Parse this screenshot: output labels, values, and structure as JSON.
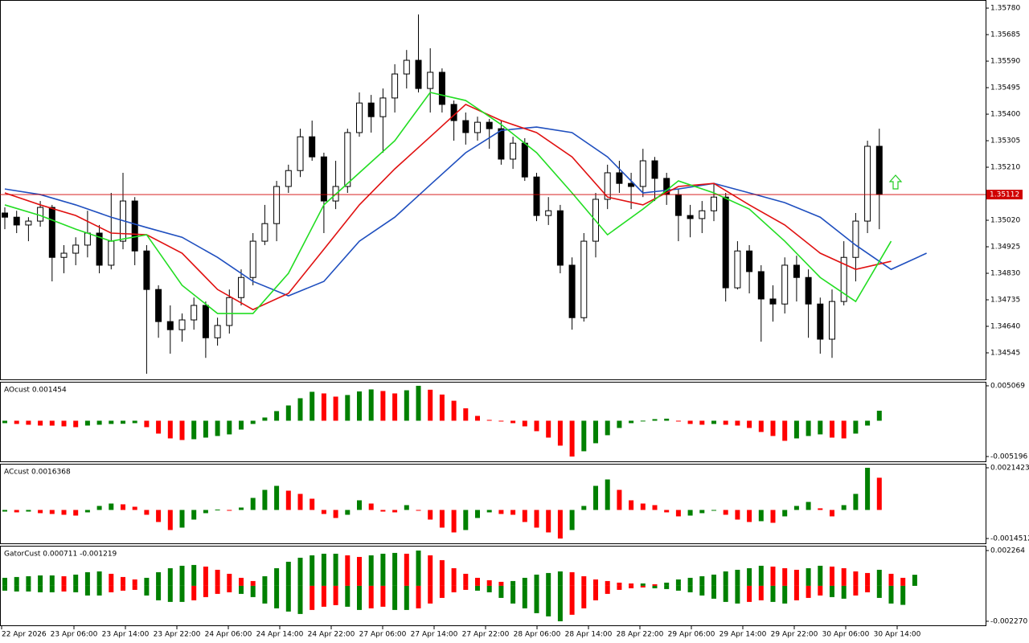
{
  "chart_data": [
    {
      "type": "candlestick",
      "open": [
        1.35046,
        1.35031,
        1.35003,
        1.35017,
        1.35066,
        1.34887,
        1.34902,
        1.34931,
        1.34974,
        1.34859,
        1.34945,
        1.35089,
        1.3491,
        1.34772,
        1.34657,
        1.34628,
        1.34663,
        1.34715,
        1.34599,
        1.34643,
        1.34743,
        1.34815,
        1.34945,
        1.35008,
        1.35141,
        1.35198,
        1.35319,
        1.35247,
        1.35089,
        1.35141,
        1.35334,
        1.3544,
        1.35391,
        1.35458,
        1.35544,
        1.35593,
        1.35492,
        1.3555,
        1.35435,
        1.35377,
        1.35334,
        1.35371,
        1.35348,
        1.35239,
        1.35296,
        1.35175,
        1.35037,
        1.35054,
        1.34859,
        1.34671,
        1.34945,
        1.35095,
        1.3519,
        1.35152,
        1.35141,
        1.35233,
        1.3517,
        1.35112,
        1.35037,
        1.35026,
        1.35054,
        1.35103,
        1.34778,
        1.3491,
        1.34836,
        1.34738,
        1.3472,
        1.34859,
        1.34815,
        1.3472,
        1.34594,
        1.34729,
        1.34887,
        1.35017,
        1.35285
      ],
      "high": [
        1.35066,
        1.35054,
        1.35031,
        1.35089,
        1.35075,
        1.34931,
        1.34959,
        1.35054,
        1.35003,
        1.35118,
        1.3519,
        1.35103,
        1.34931,
        1.34787,
        1.34715,
        1.34686,
        1.34743,
        1.34729,
        1.34671,
        1.34772,
        1.34844,
        1.34974,
        1.35075,
        1.35161,
        1.35219,
        1.35348,
        1.35377,
        1.35262,
        1.35233,
        1.35348,
        1.35478,
        1.35469,
        1.35492,
        1.35579,
        1.3563,
        1.35757,
        1.35636,
        1.35564,
        1.35449,
        1.35406,
        1.35391,
        1.35383,
        1.35377,
        1.35319,
        1.35314,
        1.3519,
        1.35103,
        1.35075,
        1.34887,
        1.34974,
        1.35118,
        1.35219,
        1.35233,
        1.3519,
        1.35276,
        1.35247,
        1.3519,
        1.35132,
        1.35075,
        1.35089,
        1.35152,
        1.35118,
        1.34945,
        1.34931,
        1.34859,
        1.34787,
        1.34887,
        1.34893,
        1.34844,
        1.34743,
        1.34772,
        1.34945,
        1.35046,
        1.35305,
        1.35348
      ],
      "low": [
        1.34988,
        1.34974,
        1.34945,
        1.34997,
        1.34801,
        1.3483,
        1.34859,
        1.34887,
        1.3483,
        1.34844,
        1.34916,
        1.34859,
        1.3447,
        1.34599,
        1.34542,
        1.34585,
        1.34628,
        1.34527,
        1.34571,
        1.34614,
        1.34715,
        1.34787,
        1.34931,
        1.34945,
        1.35118,
        1.35175,
        1.35233,
        1.34974,
        1.3506,
        1.35118,
        1.35319,
        1.35334,
        1.35262,
        1.35406,
        1.35492,
        1.35478,
        1.35406,
        1.35406,
        1.35305,
        1.35291,
        1.35305,
        1.35276,
        1.35219,
        1.35204,
        1.35161,
        1.35017,
        1.35003,
        1.3483,
        1.34628,
        1.34657,
        1.34887,
        1.3506,
        1.35118,
        1.3506,
        1.35103,
        1.35089,
        1.35075,
        1.34945,
        1.34959,
        1.34974,
        1.35017,
        1.34729,
        1.34772,
        1.34758,
        1.34585,
        1.34657,
        1.34686,
        1.34729,
        1.34599,
        1.34542,
        1.34527,
        1.34715,
        1.34801,
        1.34974,
        1.34988
      ],
      "close": [
        1.35031,
        1.35003,
        1.35017,
        1.35066,
        1.34887,
        1.34902,
        1.34931,
        1.34974,
        1.34859,
        1.34945,
        1.35089,
        1.3491,
        1.34772,
        1.34657,
        1.34628,
        1.34663,
        1.34715,
        1.34599,
        1.34643,
        1.34743,
        1.34815,
        1.34945,
        1.35008,
        1.35141,
        1.35198,
        1.35319,
        1.35247,
        1.35089,
        1.35141,
        1.35334,
        1.3544,
        1.35391,
        1.35458,
        1.35544,
        1.35593,
        1.35492,
        1.3555,
        1.35435,
        1.35377,
        1.35334,
        1.35371,
        1.35348,
        1.35239,
        1.35296,
        1.35175,
        1.35037,
        1.35054,
        1.34859,
        1.34671,
        1.34945,
        1.35095,
        1.3519,
        1.35152,
        1.35141,
        1.35233,
        1.3517,
        1.35112,
        1.35037,
        1.35026,
        1.35054,
        1.35103,
        1.34778,
        1.3491,
        1.34836,
        1.34738,
        1.3472,
        1.34859,
        1.34815,
        1.3472,
        1.34594,
        1.34729,
        1.34887,
        1.35017,
        1.35285,
        1.35112
      ],
      "up_color": "#ffffff",
      "down_color": "#000000",
      "lines": [
        {
          "color": "#1f4fbf",
          "values": [
            1.35132,
            1.35112,
            1.35075,
            1.35031,
            1.34994,
            1.34959,
            1.34887,
            1.34801,
            1.34749,
            1.34801,
            1.34945,
            1.35031,
            1.35147,
            1.35262,
            1.35342,
            1.35354,
            1.35334,
            1.35247,
            1.35118,
            1.35132,
            1.35152,
            1.35118,
            1.35083,
            1.35031,
            1.34931,
            1.34844,
            1.34902
          ]
        },
        {
          "color": "#e01010",
          "values": [
            1.35118,
            1.35075,
            1.35037,
            1.34974,
            1.34968,
            1.34902,
            1.34772,
            1.347,
            1.34758,
            1.34916,
            1.35075,
            1.35204,
            1.35319,
            1.35435,
            1.35377,
            1.35334,
            1.35247,
            1.35103,
            1.35075,
            1.35141,
            1.35152,
            1.35075,
            1.35003,
            1.34902,
            1.34844,
            1.34873,
            null
          ]
        },
        {
          "color": "#22dd22",
          "values": [
            1.35075,
            1.35037,
            1.34988,
            1.34945,
            1.34968,
            1.34787,
            1.34686,
            1.34686,
            1.3483,
            1.35075,
            1.3519,
            1.35305,
            1.35478,
            1.35449,
            1.35363,
            1.35262,
            1.35118,
            1.34968,
            1.3506,
            1.35161,
            1.35118,
            1.3506,
            1.34945,
            1.34815,
            1.34729,
            1.34945,
            null
          ]
        }
      ],
      "current_price": 1.35112,
      "current_price_color": "#d00000",
      "ylim": [
        1.3445,
        1.35809
      ],
      "yticks": [
        {
          "value": 1.3578,
          "label": "1.35780"
        },
        1.35685,
        {
          "value": 1.3559,
          "label": "1.35590"
        },
        1.35495,
        {
          "value": 1.354,
          "label": "1.35400"
        },
        1.35305,
        {
          "value": 1.3521,
          "label": "1.35210"
        },
        {
          "value": 1.3502,
          "label": "1.35020"
        },
        1.34925,
        {
          "value": 1.3483,
          "label": "1.34830"
        },
        1.34735,
        {
          "value": 1.3464,
          "label": "1.34640"
        },
        1.34545
      ]
    },
    {
      "type": "bar",
      "title": "AOcust 0.001454",
      "values": [
        -0.00035,
        -0.000466,
        -0.000583,
        -0.0007,
        -0.00071,
        -0.000816,
        -0.000933,
        -0.0007,
        -0.000583,
        -0.000466,
        -0.00044,
        -0.00035,
        -0.000933,
        -0.001866,
        -0.002565,
        -0.002798,
        -0.002682,
        -0.002449,
        -0.002215,
        -0.001982,
        -0.001283,
        -0.000466,
        0.000466,
        0.001399,
        0.002215,
        0.003265,
        0.004198,
        0.003964,
        0.003498,
        0.003731,
        0.00425,
        0.004547,
        0.004314,
        0.003964,
        0.00442,
        0.005069,
        0.0045,
        0.0038,
        0.0029,
        0.0018,
        0.0007,
        0.00012,
        -5e-05,
        -0.00035,
        -0.000816,
        -0.001516,
        -0.002449,
        -0.003614,
        -0.005196,
        -0.00443,
        -0.003265,
        -0.002099,
        -0.001049,
        -0.00035,
        1e-05,
        0.000233,
        0.0003,
        -5e-05,
        -0.000466,
        -0.000583,
        -0.000466,
        -0.000583,
        -0.0007,
        -0.001049,
        -0.001632,
        -0.002215,
        -0.002915,
        -0.002565,
        -0.002215,
        -0.001982,
        -0.002449,
        -0.002565,
        -0.001866,
        -0.0007,
        0.001454
      ],
      "up_color": "#008000",
      "down_color": "#ff0000",
      "ylim": [
        -0.006012,
        0.005536
      ],
      "yticks": [
        0.005069,
        -0.005196
      ]
    },
    {
      "type": "bar",
      "title": "ACcust 0.0016368",
      "values": [
        -8.2e-05,
        -0.000122,
        -8.2e-05,
        -0.000163,
        -0.000204,
        -0.000245,
        -0.000286,
        -0.000122,
        0.000204,
        0.000326,
        0.000286,
        0.000163,
        -0.000245,
        -0.000612,
        -0.00102,
        -0.000898,
        -0.00049,
        -0.000163,
        2e-05,
        -4.1e-05,
        0.000122,
        0.000612,
        0.00102,
        0.001224,
        0.000979,
        0.000816,
        0.000571,
        -0.000204,
        -0.000408,
        -0.000245,
        0.00049,
        0.000326,
        -8.2e-05,
        -0.000122,
        0.000245,
        -4.1e-05,
        -0.00049,
        -0.000898,
        -0.001142,
        -0.00102,
        -0.000408,
        -0.000122,
        -0.000204,
        -0.000245,
        -0.000612,
        -0.000898,
        -0.001142,
        -0.0014512,
        -0.00102,
        0.000204,
        0.001224,
        0.00155,
        0.00102,
        0.00049,
        0.000326,
        0.000245,
        -0.000122,
        -0.000326,
        -0.000286,
        -0.000163,
        -1e-05,
        -0.000245,
        -0.00049,
        -0.000612,
        -0.000571,
        -0.000653,
        -0.000326,
        0.000204,
        0.000408,
        8.2e-05,
        -0.000326,
        0.000245,
        0.000816,
        0.0021423,
        0.0016368
      ],
      "up_color": "#008000",
      "down_color": "#ff0000",
      "ylim": [
        -0.001737,
        0.002306
      ],
      "yticks": [
        0.0021423,
        -0.0014512
      ]
    },
    {
      "type": "gator",
      "title": "GatorCust 0.000711 -0.001219",
      "upper": [
        0.000515,
        0.000567,
        0.000618,
        0.00067,
        0.00067,
        0.000618,
        0.000721,
        0.000876,
        0.000927,
        0.000773,
        0.000567,
        0.000412,
        0.000515,
        0.000876,
        0.001133,
        0.001288,
        0.001339,
        0.001236,
        0.00103,
        0.000773,
        0.000515,
        0.000309,
        0.000618,
        0.001133,
        0.001545,
        0.001803,
        0.001957,
        0.00206,
        0.00206,
        0.001957,
        0.001854,
        0.001957,
        0.00206,
        0.002112,
        0.00206,
        0.002264,
        0.001957,
        0.001648,
        0.001133,
        0.000773,
        0.000515,
        0.000361,
        0.000258,
        0.000309,
        0.000515,
        0.000721,
        0.000824,
        0.000927,
        0.000876,
        0.000618,
        0.000412,
        0.000309,
        0.000206,
        0.000155,
        0.000155,
        0.000103,
        0.000206,
        0.000412,
        0.000515,
        0.000618,
        0.000721,
        0.000927,
        0.00103,
        0.001133,
        0.001288,
        0.001236,
        0.001133,
        0.00103,
        0.001133,
        0.001288,
        0.001236,
        0.001133,
        0.000927,
        0.000824,
        0.00103,
        0.000773,
        0.000515,
        0.000711
      ],
      "lower": [
        -0.000309,
        -0.000361,
        -0.000361,
        -0.000412,
        -0.000412,
        -0.000361,
        -0.000412,
        -0.000618,
        -0.000618,
        -0.000412,
        -0.000309,
        -0.000258,
        -0.000618,
        -0.000927,
        -0.00103,
        -0.00103,
        -0.000927,
        -0.000721,
        -0.000515,
        -0.000412,
        -0.000515,
        -0.000721,
        -0.001133,
        -0.001442,
        -0.001648,
        -0.001803,
        -0.001545,
        -0.001339,
        -0.001236,
        -0.001339,
        -0.001545,
        -0.001442,
        -0.001339,
        -0.001545,
        -0.001545,
        -0.001442,
        -0.001133,
        -0.000773,
        -0.000412,
        -0.000258,
        -0.000309,
        -0.000412,
        -0.000773,
        -0.001133,
        -0.001442,
        -0.001751,
        -0.001957,
        -0.00227,
        -0.001854,
        -0.001442,
        -0.000927,
        -0.000515,
        -0.000258,
        -0.000155,
        -0.000103,
        -0.000155,
        -0.000206,
        -0.000309,
        -0.000412,
        -0.000618,
        -0.000824,
        -0.00103,
        -0.001133,
        -0.00103,
        -0.000927,
        -0.00103,
        -0.001133,
        -0.000927,
        -0.000773,
        -0.000618,
        -0.000721,
        -0.000824,
        -0.000618,
        -0.000412,
        -0.000773,
        -0.001133,
        -0.001219,
        null
      ],
      "up_color": "#008000",
      "down_color": "#ff0000",
      "ylim": [
        -0.00253,
        0.00252
      ],
      "yticks": [
        0.002264,
        {
          "value": -0.00227,
          "label": "-0.002270"
        }
      ]
    }
  ],
  "time_labels": [
    "22 Apr 2026",
    "23 Apr 06:00",
    "23 Apr 14:00",
    "23 Apr 22:00",
    "24 Apr 06:00",
    "24 Apr 14:00",
    "24 Apr 22:00",
    "27 Apr 06:00",
    "27 Apr 14:00",
    "27 Apr 22:00",
    "28 Apr 06:00",
    "28 Apr 14:00",
    "28 Apr 22:00",
    "29 Apr 06:00",
    "29 Apr 14:00",
    "29 Apr 22:00",
    "30 Apr 06:00",
    "30 Apr 14:00"
  ]
}
